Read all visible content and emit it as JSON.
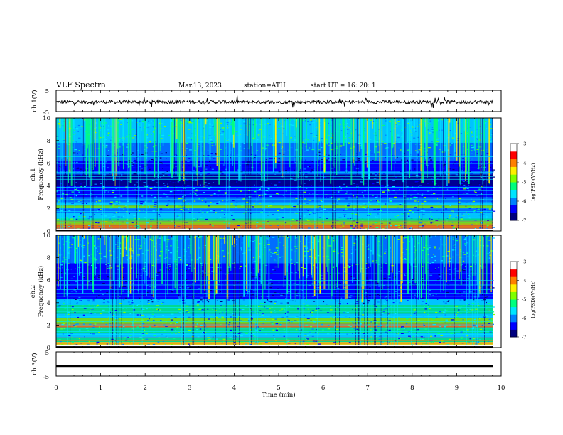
{
  "header": {
    "title": "VLF  Spectra",
    "date": "Mar.13, 2023",
    "station": "station=ATH",
    "start": "start  UT  =    16: 20: 1"
  },
  "colors": {
    "jet": [
      "#00007f",
      "#0000ff",
      "#0080ff",
      "#00e5ff",
      "#00ff7f",
      "#7fff00",
      "#ffee00",
      "#ff8000",
      "#ff0000",
      "#ffffff"
    ],
    "trace": "#000000",
    "frame": "#000000"
  },
  "chart_data": [
    {
      "type": "line",
      "ylabel": "ch.1(V)",
      "ylim": [
        -5,
        5
      ],
      "yticks": [
        "5",
        "-5"
      ],
      "xlim": [
        0,
        10
      ],
      "description_value": "noisy waveform centered near 0 V, x range 0 to ~9.8 min"
    },
    {
      "type": "heatmap",
      "ylabel_channel": "ch.1",
      "ylabel": "Frequency  (kHz)",
      "ylim": [
        0,
        10
      ],
      "yticks": [
        "0",
        "2",
        "4",
        "6",
        "8",
        "10"
      ],
      "xlim": [
        0,
        10
      ],
      "colorbar": {
        "label": "log(PSD)(V²/Hz)",
        "range": [
          -7,
          -3
        ],
        "ticks": [
          "-3",
          "-4",
          "-5",
          "-6",
          "-7"
        ]
      }
    },
    {
      "type": "heatmap",
      "ylabel_channel": "ch.2",
      "ylabel": "Frequency  (kHz)",
      "ylim": [
        0,
        10
      ],
      "yticks": [
        "0",
        "2",
        "4",
        "6",
        "8",
        "10"
      ],
      "xlim": [
        0,
        10
      ],
      "colorbar": {
        "label": "log(PSD)(V²/Hz)",
        "range": [
          -7,
          -3
        ],
        "ticks": [
          "-3",
          "-4",
          "-5",
          "-6",
          "-7"
        ]
      }
    },
    {
      "type": "line",
      "ylabel": "ch.3(V)",
      "ylim": [
        -5,
        5
      ],
      "yticks": [
        "5",
        "-5"
      ],
      "xlim": [
        0,
        10
      ],
      "xlabel": "Time  (min)",
      "xticks": [
        "0",
        "1",
        "2",
        "3",
        "4",
        "5",
        "6",
        "7",
        "8",
        "9",
        "10"
      ]
    }
  ]
}
